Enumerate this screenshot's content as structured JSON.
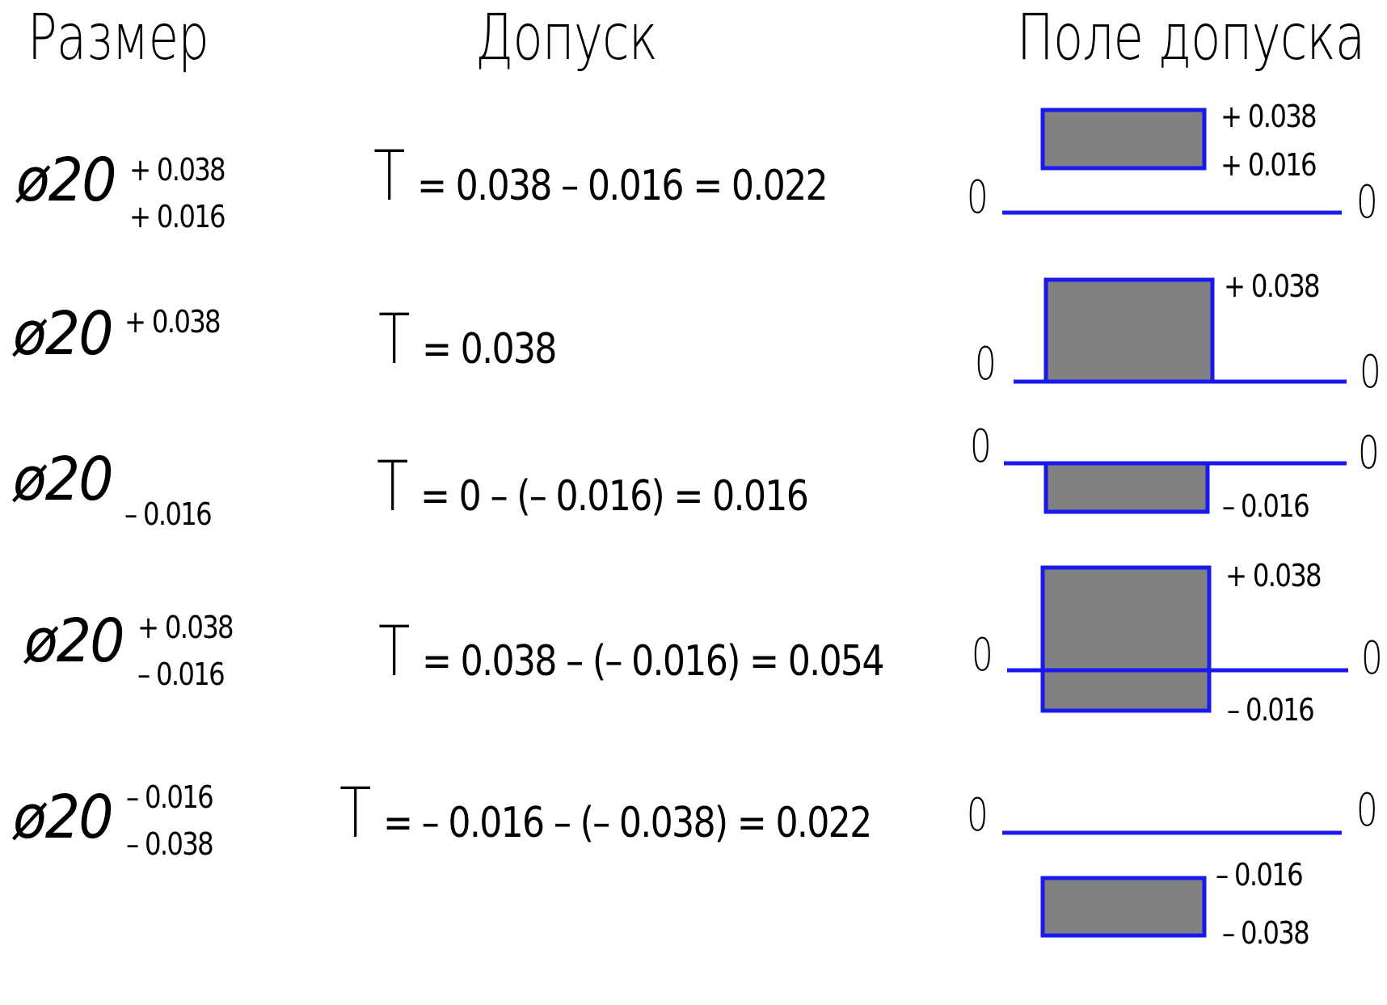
{
  "headers": {
    "size": "Размер",
    "tolerance": "Допуск",
    "field": "Поле допуска"
  },
  "colors": {
    "line": "#1a1aee",
    "fill": "#808080"
  },
  "zero_label": "0",
  "rows": [
    {
      "dim": "ø20",
      "upper": "+ 0.038",
      "lower": "+ 0.016",
      "T": "T",
      "expr": "= 0.038 – 0.016 = 0.022",
      "field_upper_label": "+ 0.038",
      "field_lower_label": "+ 0.016",
      "es": 0.038,
      "ei": 0.016
    },
    {
      "dim": "ø20",
      "upper": "+ 0.038",
      "lower": "",
      "T": "T",
      "expr": "= 0.038",
      "field_upper_label": "+ 0.038",
      "field_lower_label": "",
      "es": 0.038,
      "ei": 0
    },
    {
      "dim": "ø20",
      "upper": "",
      "lower": "– 0.016",
      "T": "T",
      "expr": "= 0 – (– 0.016) = 0.016",
      "field_upper_label": "",
      "field_lower_label": "– 0.016",
      "es": 0,
      "ei": -0.016
    },
    {
      "dim": "ø20",
      "upper": "+ 0.038",
      "lower": "– 0.016",
      "T": "T",
      "expr": "= 0.038 – (– 0.016) = 0.054",
      "field_upper_label": "+ 0.038",
      "field_lower_label": "– 0.016",
      "es": 0.038,
      "ei": -0.016
    },
    {
      "dim": "ø20",
      "upper": "– 0.016",
      "lower": "– 0.038",
      "T": "T",
      "expr": "=  – 0.016 – (– 0.038) = 0.022",
      "field_upper_label": "– 0.016",
      "field_lower_label": "– 0.038",
      "es": -0.016,
      "ei": -0.038
    }
  ]
}
